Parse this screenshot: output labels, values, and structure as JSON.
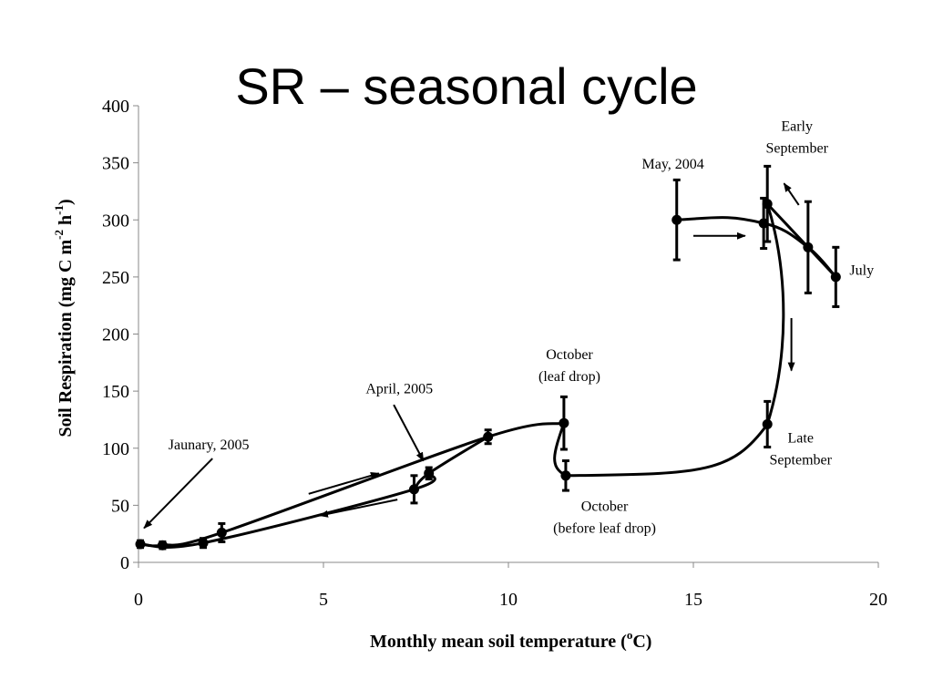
{
  "title": "SR – seasonal cycle",
  "chart_data": {
    "type": "line",
    "xlabel": {
      "text": "Monthly mean soil temperature (",
      "sup": "o",
      "tail": "C)"
    },
    "ylabel": {
      "text": "Soil Respiration (mg C m",
      "sup1": "-2",
      "mid": " h",
      "sup2": "-1",
      "tail": ")"
    },
    "xlim": [
      0,
      20
    ],
    "ylim": [
      0,
      400
    ],
    "xticks": [
      0,
      5,
      10,
      15,
      20
    ],
    "yticks": [
      0,
      50,
      100,
      150,
      200,
      250,
      300,
      350,
      400
    ],
    "grid": false,
    "legend": "none",
    "series": [
      {
        "points": [
          {
            "x": 14.55,
            "y": 300,
            "err": 35
          },
          {
            "x": 16.9,
            "y": 297,
            "err": 22
          },
          {
            "x": 18.1,
            "y": 276,
            "err": 40
          },
          {
            "x": 18.85,
            "y": 250,
            "err": 26
          },
          {
            "x": 17.0,
            "y": 314,
            "err": 33
          },
          {
            "x": 17.0,
            "y": 121,
            "err": 20
          },
          {
            "x": 11.55,
            "y": 76,
            "err": 13
          },
          {
            "x": 11.5,
            "y": 122,
            "err": 23
          },
          {
            "x": 9.45,
            "y": 110,
            "err": 6
          },
          {
            "x": 7.85,
            "y": 78,
            "err": 5
          },
          {
            "x": 7.45,
            "y": 64,
            "err": 12
          },
          {
            "x": 2.25,
            "y": 26,
            "err": 8
          },
          {
            "x": 1.75,
            "y": 17,
            "err": 4
          },
          {
            "x": 0.65,
            "y": 15,
            "err": 3
          },
          {
            "x": 0.05,
            "y": 16,
            "err": 3
          }
        ]
      }
    ],
    "annotations": [
      {
        "lines": [
          "May, 2004"
        ],
        "x": 14.45,
        "y": 345
      },
      {
        "lines": [
          "Early",
          "September"
        ],
        "x": 17.8,
        "y": 378
      },
      {
        "lines": [
          "July"
        ],
        "x": 19.55,
        "y": 252
      },
      {
        "lines": [
          "Late",
          "September"
        ],
        "x": 17.9,
        "y": 105
      },
      {
        "lines": [
          "October",
          "(leaf drop)"
        ],
        "x": 11.65,
        "y": 178
      },
      {
        "lines": [
          "October",
          "(before leaf drop)"
        ],
        "x": 12.6,
        "y": 45
      },
      {
        "lines": [
          "April, 2005"
        ],
        "x": 7.05,
        "y": 148
      },
      {
        "lines": [
          "Jaunary, 2005"
        ],
        "x": 1.9,
        "y": 99
      }
    ]
  }
}
